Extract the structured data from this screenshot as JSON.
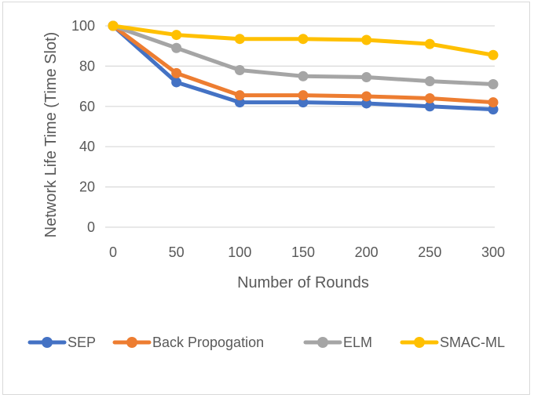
{
  "chart_data": {
    "type": "line",
    "title": "",
    "xlabel": "Number of Rounds",
    "ylabel": "Network Life Time (Time Slot)",
    "x": [
      0,
      50,
      100,
      150,
      200,
      250,
      300
    ],
    "x_tick_labels": [
      "0",
      "50",
      "100",
      "150",
      "200",
      "250",
      "300"
    ],
    "ylim": [
      0,
      100
    ],
    "y_ticks": [
      0,
      20,
      40,
      60,
      80,
      100
    ],
    "y_tick_labels": [
      "0",
      "20",
      "40",
      "60",
      "80",
      "100"
    ],
    "grid": "horizontal",
    "legend_position": "bottom",
    "series": [
      {
        "name": "SEP",
        "color": "#4472C4",
        "values": [
          100,
          72,
          62,
          62,
          61.5,
          60,
          58.5
        ]
      },
      {
        "name": "Back Propogation",
        "color": "#ED7D31",
        "values": [
          100,
          76.5,
          65.5,
          65.5,
          65,
          64,
          62
        ]
      },
      {
        "name": "ELM",
        "color": "#A5A5A5",
        "values": [
          100,
          89,
          78,
          75,
          74.5,
          72.5,
          71
        ]
      },
      {
        "name": "SMAC-ML",
        "color": "#FFC000",
        "values": [
          100,
          95.5,
          93.5,
          93.5,
          93,
          91,
          85.5
        ]
      }
    ]
  }
}
